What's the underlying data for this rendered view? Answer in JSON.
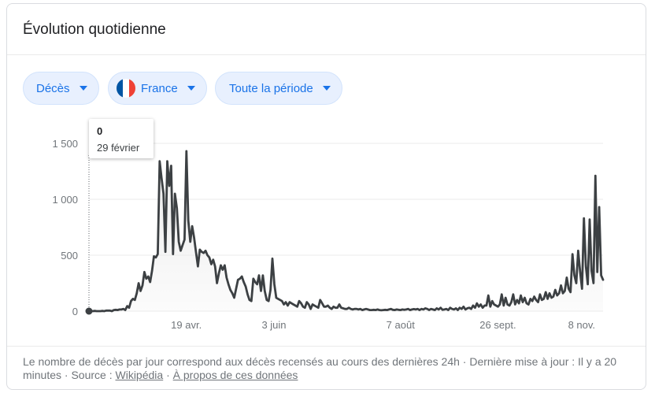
{
  "card": {
    "title": "Évolution quotidienne"
  },
  "filters": {
    "metric": "Décès",
    "country": "France",
    "period": "Toute la période"
  },
  "colors": {
    "accent": "#1a73e8",
    "chip_bg": "#e8f0fe",
    "line": "#3c4043",
    "area": "#e8e8e8",
    "flag_blue": "#0055a4",
    "flag_white": "#ffffff",
    "flag_red": "#ef4135"
  },
  "tooltip": {
    "value": "0",
    "date": "29 février"
  },
  "chart_data": {
    "type": "area",
    "x_start": "2020-02-29",
    "x_end": "2020-11-19",
    "ylim": [
      0,
      1500
    ],
    "y_ticks": [
      0,
      500,
      1000,
      1500
    ],
    "y_tick_labels": [
      "0",
      "500",
      "1 000",
      "1 500"
    ],
    "x_ticks": [
      {
        "date": "2020-04-19",
        "label": "19 avr."
      },
      {
        "date": "2020-06-03",
        "label": "3 juin"
      },
      {
        "date": "2020-08-07",
        "label": "7 août"
      },
      {
        "date": "2020-09-26",
        "label": "26 sept."
      },
      {
        "date": "2020-11-08",
        "label": "8 nov."
      }
    ],
    "grid": true,
    "series": [
      {
        "values": [
          0,
          0,
          0,
          2,
          0,
          0,
          0,
          2,
          0,
          5,
          5,
          5,
          0,
          10,
          12,
          10,
          15,
          15,
          20,
          10,
          45,
          30,
          90,
          110,
          100,
          160,
          250,
          180,
          230,
          350,
          290,
          310,
          260,
          360,
          490,
          480,
          510,
          1340,
          1190,
          1050,
          530,
          1340,
          1120,
          1300,
          510,
          1050,
          920,
          620,
          540,
          590,
          640,
          1430,
          810,
          620,
          760,
          660,
          530,
          400,
          550,
          530,
          520,
          540,
          500,
          480,
          420,
          460,
          400,
          250,
          340,
          410,
          370,
          410,
          300,
          240,
          190,
          160,
          120,
          200,
          280,
          290,
          310,
          260,
          220,
          150,
          100,
          90,
          290,
          260,
          240,
          320,
          180,
          320,
          180,
          100,
          90,
          190,
          470,
          240,
          120,
          110,
          100,
          90,
          60,
          80,
          50,
          80,
          70,
          60,
          50,
          40,
          90,
          70,
          40,
          30,
          80,
          60,
          20,
          60,
          50,
          40,
          30,
          100,
          70,
          40,
          40,
          50,
          30,
          20,
          40,
          30,
          30,
          60,
          30,
          25,
          20,
          20,
          30,
          20,
          15,
          20,
          20,
          15,
          20,
          10,
          15,
          20,
          15,
          10,
          10,
          12,
          10,
          15,
          10,
          8,
          10,
          12,
          10,
          15,
          20,
          12,
          10,
          15,
          12,
          10,
          15,
          12,
          15,
          20,
          10,
          15,
          18,
          15,
          20,
          10,
          20,
          15,
          25,
          20,
          10,
          20,
          15,
          10,
          25,
          15,
          30,
          12,
          15,
          20,
          10,
          30,
          20,
          15,
          25,
          10,
          30,
          20,
          40,
          15,
          25,
          30,
          20,
          50,
          30,
          70,
          40,
          60,
          30,
          50,
          50,
          140,
          40,
          90,
          60,
          50,
          40,
          60,
          150,
          50,
          120,
          60,
          50,
          80,
          150,
          60,
          100,
          70,
          140,
          80,
          120,
          70,
          60,
          110,
          90,
          130,
          100,
          80,
          150,
          100,
          110,
          170,
          110,
          160,
          120,
          130,
          190,
          140,
          160,
          230,
          160,
          180,
          300,
          200,
          170,
          510,
          320,
          250,
          540,
          350,
          200,
          830,
          400,
          240,
          820,
          360,
          250,
          1210,
          350,
          930,
          320,
          280
        ]
      }
    ]
  },
  "footer": {
    "text": "Le nombre de décès par jour correspond aux décès recensés au cours des dernières 24h · Dernière mise à jour : Il y a 20 minutes · Source :",
    "source_link": "Wikipédia",
    "separator": "·",
    "about_link": "À propos de ces données"
  }
}
